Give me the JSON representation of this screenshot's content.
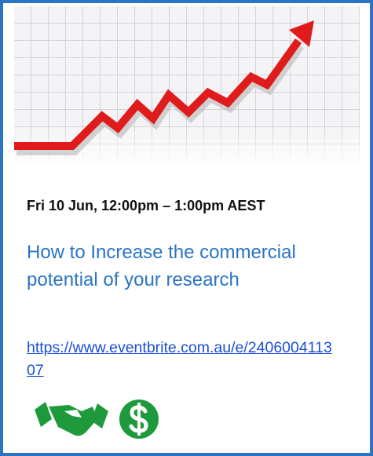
{
  "event": {
    "date_time": "Fri 10 Jun, 12:00pm – 1:00pm AEST",
    "title": "How to Increase the commercial potential of your research",
    "link": "https://www.eventbrite.com.au/e/240600411307"
  }
}
